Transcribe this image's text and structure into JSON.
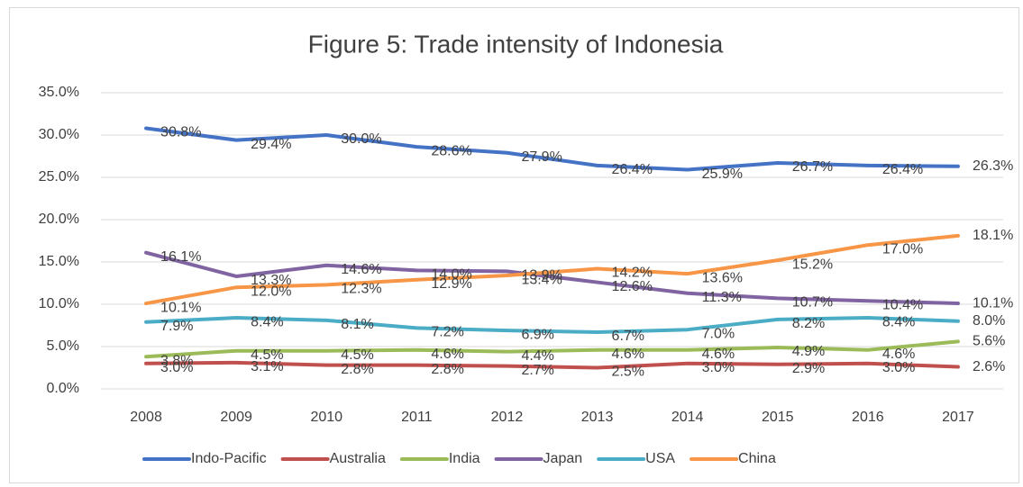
{
  "chart_data": {
    "type": "line",
    "title": "Figure 5: Trade intensity of Indonesia",
    "categories": [
      "2008",
      "2009",
      "2010",
      "2011",
      "2012",
      "2013",
      "2014",
      "2015",
      "2016",
      "2017"
    ],
    "series": [
      {
        "name": "Indo-Pacific",
        "color": "#4472c4",
        "values": [
          30.8,
          29.4,
          30.0,
          28.6,
          27.9,
          26.4,
          25.9,
          26.7,
          26.4,
          26.3
        ],
        "value_labels": [
          "30.8%",
          "29.4%",
          "30.0%",
          "28.6%",
          "27.9%",
          "26.4%",
          "25.9%",
          "26.7%",
          "26.4%",
          "26.3%"
        ]
      },
      {
        "name": "Australia",
        "color": "#c0504d",
        "values": [
          3.0,
          3.1,
          2.8,
          2.8,
          2.7,
          2.5,
          3.0,
          2.9,
          3.0,
          2.6
        ],
        "value_labels": [
          "3.0%",
          "3.1%",
          "2.8%",
          "2.8%",
          "2.7%",
          "2.5%",
          "3.0%",
          "2.9%",
          "3.0%",
          "2.6%"
        ]
      },
      {
        "name": "India",
        "color": "#9bbb59",
        "values": [
          3.8,
          4.5,
          4.5,
          4.6,
          4.4,
          4.6,
          4.6,
          4.9,
          4.6,
          5.6
        ],
        "value_labels": [
          "3.8%",
          "4.5%",
          "4.5%",
          "4.6%",
          "4.4%",
          "4.6%",
          "4.6%",
          "4.9%",
          "4.6%",
          "5.6%"
        ]
      },
      {
        "name": "Japan",
        "color": "#8064a2",
        "values": [
          16.1,
          13.3,
          14.6,
          14.0,
          13.9,
          12.6,
          11.3,
          10.7,
          10.4,
          10.1
        ],
        "value_labels": [
          "16.1%",
          "13.3%",
          "14.6%",
          "14.0%",
          "13.9%",
          "12.6%",
          "11.3%",
          "10.7%",
          "10.4%",
          "10.1%"
        ]
      },
      {
        "name": "USA",
        "color": "#4bacc6",
        "values": [
          7.9,
          8.4,
          8.1,
          7.2,
          6.9,
          6.7,
          7.0,
          8.2,
          8.4,
          8.0
        ],
        "value_labels": [
          "7.9%",
          "8.4%",
          "8.1%",
          "7.2%",
          "6.9%",
          "6.7%",
          "7.0%",
          "8.2%",
          "8.4%",
          "8.0%"
        ]
      },
      {
        "name": "China",
        "color": "#f79646",
        "values": [
          10.1,
          12.0,
          12.3,
          12.9,
          13.4,
          14.2,
          13.6,
          15.2,
          17.0,
          18.1
        ],
        "value_labels": [
          "10.1%",
          "12.0%",
          "12.3%",
          "12.9%",
          "13.4%",
          "14.2%",
          "13.6%",
          "15.2%",
          "17.0%",
          "18.1%"
        ]
      }
    ],
    "ylim": [
      0,
      35
    ],
    "yticks": [
      {
        "value": 0,
        "label": "0.0%"
      },
      {
        "value": 5,
        "label": "5.0%"
      },
      {
        "value": 10,
        "label": "10.0%"
      },
      {
        "value": 15,
        "label": "15.0%"
      },
      {
        "value": 20,
        "label": "20.0%"
      },
      {
        "value": 25,
        "label": "25.0%"
      },
      {
        "value": 30,
        "label": "30.0%"
      },
      {
        "value": 35,
        "label": "35.0%"
      }
    ],
    "grid": true,
    "legend": "bottom"
  }
}
